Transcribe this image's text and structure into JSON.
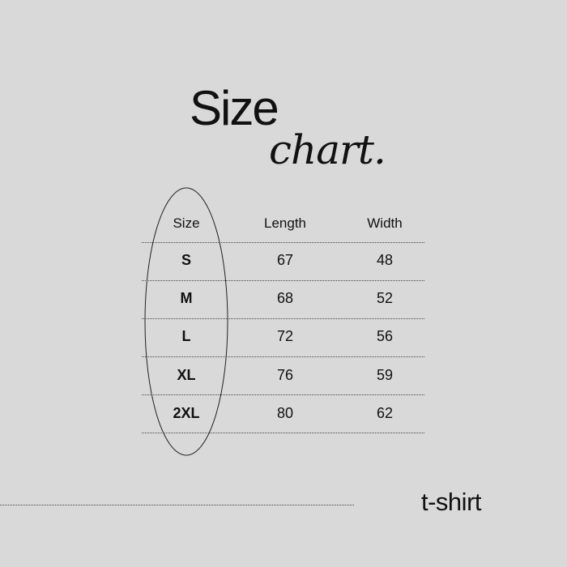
{
  "title": {
    "main": "Size",
    "sub": "chart."
  },
  "table": {
    "headers": [
      "Size",
      "Length",
      "Width"
    ],
    "rows": [
      [
        "S",
        "67",
        "48"
      ],
      [
        "M",
        "68",
        "52"
      ],
      [
        "L",
        "72",
        "56"
      ],
      [
        "XL",
        "76",
        "59"
      ],
      [
        "2XL",
        "80",
        "62"
      ]
    ]
  },
  "footer": {
    "product": "t-shirt"
  },
  "colors": {
    "background": "#d9d9d9",
    "text": "#111111"
  }
}
